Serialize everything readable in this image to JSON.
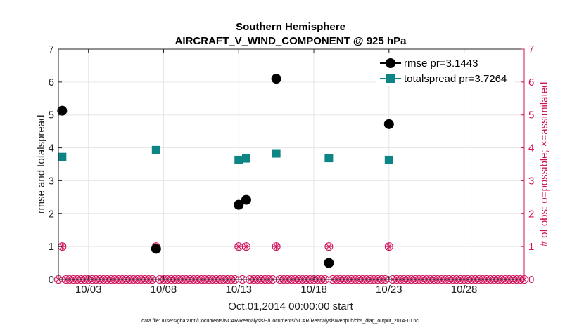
{
  "chart_data": {
    "type": "scatter",
    "title": "Southern Hemisphere",
    "subtitle": "AIRCRAFT_V_WIND_COMPONENT @ 925 hPa",
    "xlabel": "Oct.01,2014 00:00:00 start",
    "ylabel": "rmse and totalspread",
    "ylabel_right": "# of obs: o=possible; ×=assimilated",
    "footer": "data file: /Users/gharamti/Documents/NCAR/Reanalysis/~/Documents/NCAR/Reanalysis/webpub/obs_diag_output_2014-10.nc",
    "xlim": [
      1,
      32
    ],
    "ylim": [
      0,
      7
    ],
    "ylim_right": [
      0,
      7
    ],
    "xticks": [
      3,
      8,
      13,
      18,
      23,
      28
    ],
    "xtick_labels": [
      "10/03",
      "10/08",
      "10/13",
      "10/18",
      "10/23",
      "10/28"
    ],
    "yticks": [
      0,
      1,
      2,
      3,
      4,
      5,
      6,
      7
    ],
    "ytick_labels": [
      "0",
      "1",
      "2",
      "3",
      "4",
      "5",
      "6",
      "7"
    ],
    "grid": true,
    "legend_position": "top-right",
    "colors": {
      "rmse": "#000000",
      "totalspread": "#0e8585",
      "obs": "#d0105a",
      "grid": "#e6e6e6"
    },
    "series": [
      {
        "name": "rmse pr=3.1443",
        "marker": "circle",
        "x": [
          1.25,
          7.5,
          13.0,
          13.5,
          15.5,
          19.0,
          23.0
        ],
        "y": [
          5.13,
          0.93,
          2.27,
          2.42,
          6.1,
          0.5,
          4.72
        ]
      },
      {
        "name": "totalspread pr=3.7264",
        "marker": "square",
        "x": [
          1.25,
          7.5,
          13.0,
          13.5,
          15.5,
          19.0,
          23.0
        ],
        "y": [
          3.72,
          3.93,
          3.63,
          3.68,
          3.83,
          3.69,
          3.63
        ]
      }
    ],
    "obs_counts": {
      "start": 1.0,
      "step": 0.25,
      "nonzero": [
        {
          "x": 1.25,
          "possible": 1,
          "assimilated": 1
        },
        {
          "x": 7.5,
          "possible": 1,
          "assimilated": 1
        },
        {
          "x": 13.0,
          "possible": 1,
          "assimilated": 1
        },
        {
          "x": 13.5,
          "possible": 1,
          "assimilated": 1
        },
        {
          "x": 15.5,
          "possible": 1,
          "assimilated": 1
        },
        {
          "x": 19.0,
          "possible": 1,
          "assimilated": 1
        },
        {
          "x": 23.0,
          "possible": 1,
          "assimilated": 1
        }
      ]
    }
  }
}
